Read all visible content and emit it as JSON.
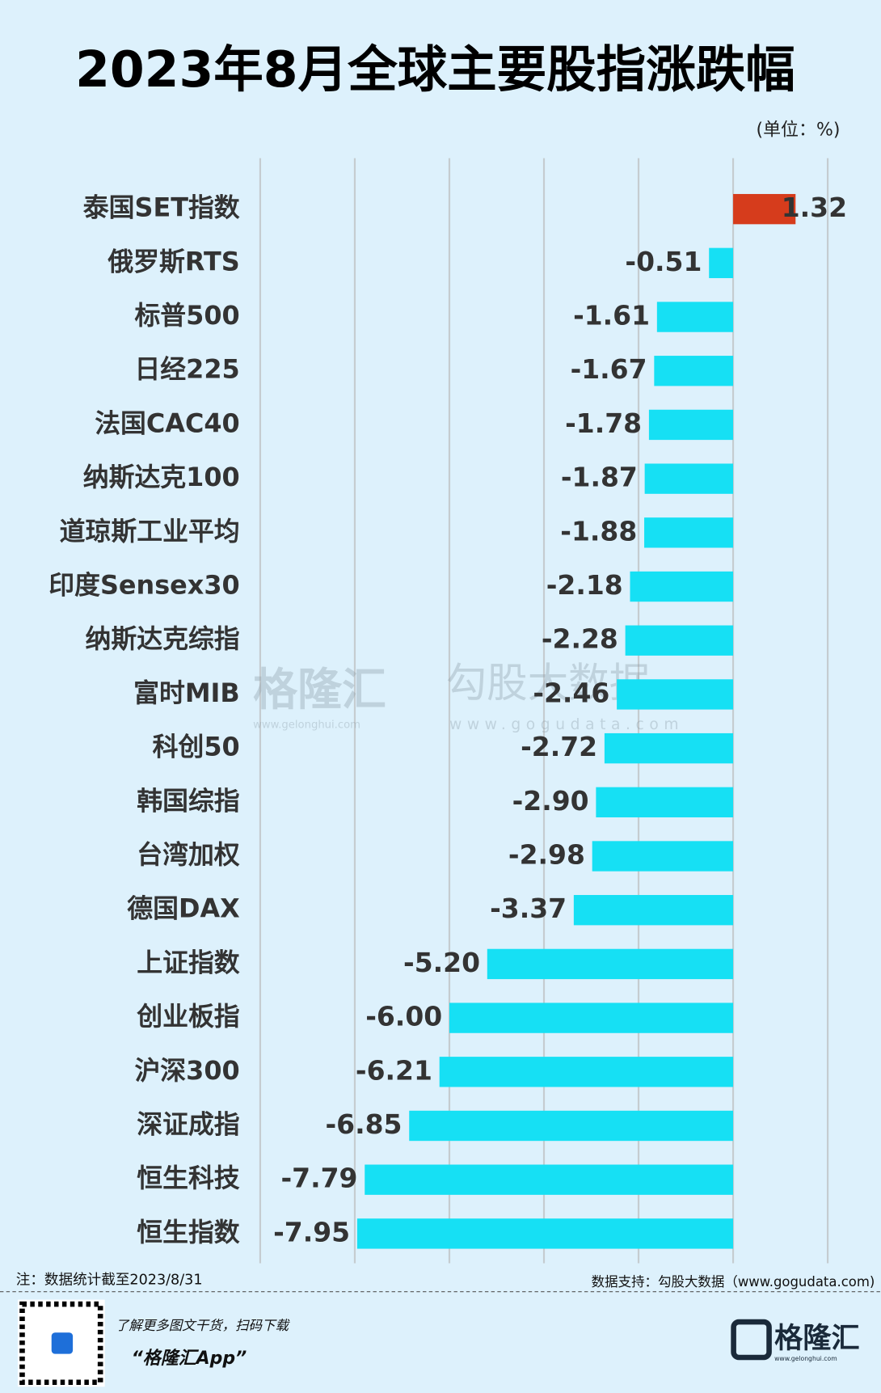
{
  "chart_data": {
    "type": "hbar",
    "title": "2023年8月全球主要股指涨跌幅",
    "unit": "(单位：%)",
    "categories": [
      "泰国SET指数",
      "俄罗斯RTS",
      "标普500",
      "日经225",
      "法国CAC40",
      "纳斯达克100",
      "道琼斯工业平均",
      "印度Sensex30",
      "纳斯达克综指",
      "富时MIB",
      "科创50",
      "韩国综指",
      "台湾加权",
      "德国DAX",
      "上证指数",
      "创业板指",
      "沪深300",
      "深证成指",
      "恒生科技",
      "恒生指数"
    ],
    "values": [
      1.32,
      -0.51,
      -1.61,
      -1.67,
      -1.78,
      -1.87,
      -1.88,
      -2.18,
      -2.28,
      -2.46,
      -2.72,
      -2.9,
      -2.98,
      -3.37,
      -5.2,
      -6.0,
      -6.21,
      -6.85,
      -7.79,
      -7.95
    ],
    "value_labels": [
      "1.32",
      "-0.51",
      "-1.61",
      "-1.67",
      "-1.78",
      "-1.87",
      "-1.88",
      "-2.18",
      "-2.28",
      "-2.46",
      "-2.72",
      "-2.90",
      "-2.98",
      "-3.37",
      "-5.20",
      "-6.00",
      "-6.21",
      "-6.85",
      "-7.79",
      "-7.95"
    ],
    "positive_color": "#d63c1c",
    "negative_color": "#16e0f4",
    "xlim": [
      -10,
      2
    ],
    "xticks": [
      -10,
      -8,
      -6,
      -4,
      -2,
      0,
      2
    ],
    "grid": true,
    "note": "注：数据统计截至2023/8/31",
    "source": "数据支持：勾股大数据（www.gogudata.com)",
    "watermarks": [
      "格隆汇",
      "www.gelonghui.com",
      "勾股大数据",
      "www.gogudata.com"
    ]
  },
  "footer": {
    "promo": "了解更多图文干货，扫码下载",
    "app": "“格隆汇App”",
    "logo": "格隆汇",
    "logo_url": "www.gelonghui.com"
  }
}
